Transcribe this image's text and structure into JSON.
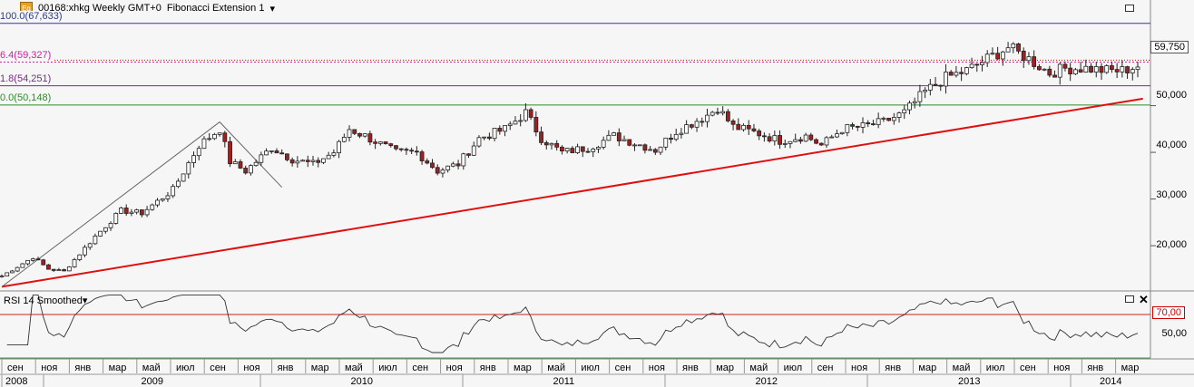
{
  "header": {
    "symbol_text": "00168:xhkg Weekly GMT+0",
    "study_text": "Fibonacci Extension 1",
    "icon": "eq-icon",
    "icon_label": "Eq"
  },
  "fib_labels": [
    {
      "text": "100.0(67,633)",
      "value": 67633,
      "color": "#2b3d8f"
    },
    {
      "text": "6.4(59,327)",
      "value": 59327,
      "color": "#d020a0"
    },
    {
      "text": "1.8(54,251)",
      "value": 54251,
      "color": "#7a2a8a"
    },
    {
      "text": "0.0(50,148)",
      "value": 50148,
      "color": "#2f8a2f"
    }
  ],
  "price": {
    "last": "59,750",
    "last_value": 59750
  },
  "y_ticks": [
    "50,000",
    "40,000",
    "30,000",
    "20,000"
  ],
  "rsi": {
    "title": "RSI 14 Smoothed",
    "level_label": "70,00",
    "mid_label": "50,00",
    "level": 70
  },
  "x_axis": {
    "months": [
      "сен",
      "ноя",
      "янв",
      "мар",
      "май",
      "июл",
      "сен",
      "ноя",
      "янв",
      "мар",
      "май",
      "июл",
      "сен",
      "ноя",
      "янв",
      "мар",
      "май",
      "июл",
      "сен",
      "ноя",
      "янв",
      "мар",
      "май",
      "июл",
      "сен",
      "ноя",
      "янв",
      "мар",
      "май",
      "июл",
      "сен",
      "ноя",
      "янв",
      "мар"
    ],
    "years": [
      "2008",
      "2009",
      "2010",
      "2011",
      "2012",
      "2013",
      "2014"
    ]
  },
  "chart_data": {
    "type": "candlestick",
    "ylim": [
      10500,
      70500
    ],
    "rsi_ylim": [
      30,
      90
    ],
    "keypoints": [
      [
        0,
        13500
      ],
      [
        6,
        17500
      ],
      [
        9,
        15000
      ],
      [
        12,
        14500
      ],
      [
        18,
        22000
      ],
      [
        23,
        27500
      ],
      [
        27,
        27000
      ],
      [
        33,
        32000
      ],
      [
        38,
        41500
      ],
      [
        42,
        45000
      ],
      [
        44,
        38000
      ],
      [
        47,
        36000
      ],
      [
        52,
        41000
      ],
      [
        56,
        38500
      ],
      [
        60,
        37500
      ],
      [
        64,
        40000
      ],
      [
        67,
        45000
      ],
      [
        70,
        43500
      ],
      [
        76,
        40000
      ],
      [
        80,
        40000
      ],
      [
        84,
        36000
      ],
      [
        88,
        37500
      ],
      [
        92,
        43000
      ],
      [
        97,
        45000
      ],
      [
        101,
        48500
      ],
      [
        104,
        43000
      ],
      [
        108,
        40000
      ],
      [
        113,
        41000
      ],
      [
        118,
        43500
      ],
      [
        122,
        42000
      ],
      [
        126,
        40500
      ],
      [
        130,
        44500
      ],
      [
        136,
        48000
      ],
      [
        138,
        49500
      ],
      [
        141,
        45500
      ],
      [
        146,
        44000
      ],
      [
        150,
        42500
      ],
      [
        155,
        43500
      ],
      [
        158,
        41500
      ],
      [
        162,
        45000
      ],
      [
        166,
        45500
      ],
      [
        170,
        46500
      ],
      [
        174,
        48500
      ],
      [
        178,
        53000
      ],
      [
        182,
        56000
      ],
      [
        186,
        57500
      ],
      [
        190,
        60000
      ],
      [
        194,
        62500
      ],
      [
        198,
        60000
      ],
      [
        202,
        57000
      ],
      [
        205,
        58000
      ],
      [
        209,
        58000
      ],
      [
        213,
        57500
      ],
      [
        216,
        57500
      ],
      [
        219,
        58500
      ]
    ],
    "trendline": [
      [
        0,
        11200
      ],
      [
        220,
        51500
      ]
    ],
    "fib_path": [
      [
        0,
        11200
      ],
      [
        42,
        46500
      ],
      [
        54,
        32500
      ]
    ]
  }
}
